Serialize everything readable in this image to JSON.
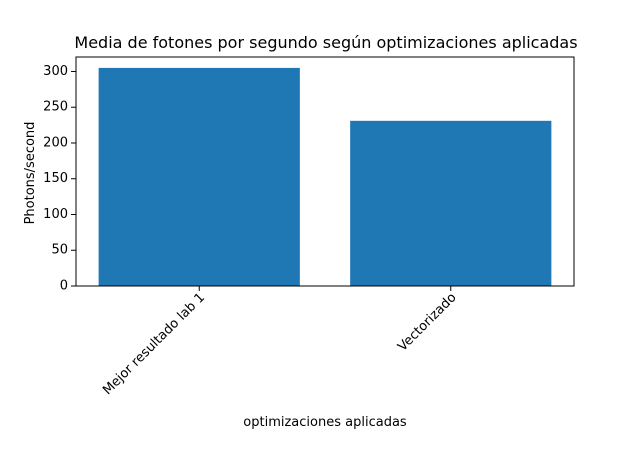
{
  "chart_data": {
    "type": "bar",
    "title": "Media de fotones por segundo según optimizaciones aplicadas",
    "xlabel": "optimizaciones aplicadas",
    "ylabel": "Photons/second",
    "categories": [
      "Mejor resultado lab 1",
      "Vectorizado"
    ],
    "values": [
      305,
      231
    ],
    "ylim": [
      0,
      320.25
    ],
    "yticks": [
      0,
      50,
      100,
      150,
      200,
      250,
      300
    ],
    "grid": false,
    "bar_color": "#1f77b4",
    "xtick_rotation_deg": 45
  }
}
